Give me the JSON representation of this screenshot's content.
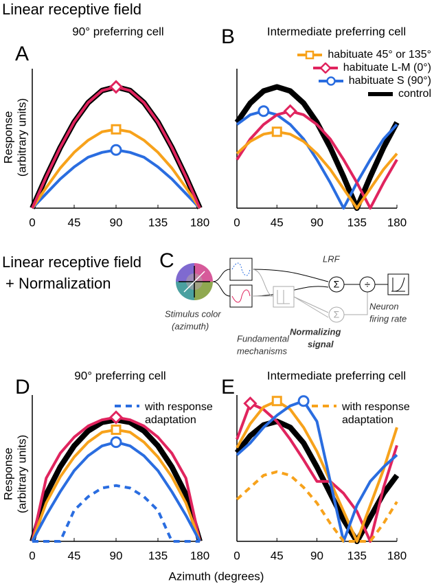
{
  "section_titles": [
    "Linear receptive field",
    "Linear receptive field",
    "+ Normalization"
  ],
  "shared_xlabel": "Azimuth (degrees)",
  "diagram": {
    "panel_label": "C",
    "lrf": "LRF",
    "sum_symbol": "Σ",
    "divide_symbol": "÷",
    "stimulus": [
      "Stimulus color",
      "(azimuth)"
    ],
    "mechanisms": [
      "Fundamental",
      "mechanisms"
    ],
    "normalizing": [
      "Normalizing",
      "signal"
    ],
    "neuron": [
      "Neuron",
      "firing rate"
    ]
  },
  "chart_data": [
    {
      "type": "line",
      "panel_label": "A",
      "title": "90° preferring cell",
      "ylabel": [
        "Response",
        "(arbitrary units)"
      ],
      "x": [
        0,
        15,
        30,
        45,
        60,
        75,
        90,
        105,
        120,
        135,
        150,
        165,
        180
      ],
      "xlim": [
        0,
        180
      ],
      "xticks": [
        0,
        45,
        90,
        135,
        180
      ],
      "ylim": [
        0,
        1.15
      ],
      "series": [
        {
          "color": "#e0245e",
          "marker": "diamond",
          "values": [
            0,
            0.26,
            0.5,
            0.71,
            0.87,
            0.97,
            1,
            0.97,
            0.87,
            0.71,
            0.5,
            0.26,
            0
          ]
        },
        {
          "color": "#f7a21b",
          "marker": "square",
          "values": [
            0,
            0.17,
            0.33,
            0.46,
            0.56,
            0.63,
            0.65,
            0.63,
            0.56,
            0.46,
            0.33,
            0.17,
            0
          ]
        },
        {
          "color": "#2a6de0",
          "marker": "circle",
          "values": [
            0,
            0.12,
            0.24,
            0.34,
            0.42,
            0.46,
            0.48,
            0.46,
            0.42,
            0.34,
            0.24,
            0.12,
            0
          ]
        },
        {
          "color": "#000000",
          "values": [
            0,
            0.26,
            0.5,
            0.71,
            0.87,
            0.97,
            1,
            0.97,
            0.87,
            0.71,
            0.5,
            0.26,
            0
          ]
        }
      ]
    },
    {
      "type": "line",
      "panel_label": "B",
      "title": "Intermediate preferring cell",
      "legend": "upper right",
      "x": [
        0,
        15,
        30,
        45,
        60,
        75,
        90,
        105,
        120,
        135,
        150,
        165,
        180
      ],
      "xlim": [
        0,
        180
      ],
      "xticks": [
        0,
        45,
        90,
        135,
        180
      ],
      "ylim": [
        0,
        1.15
      ],
      "series": [
        {
          "name": "habituate 45° or 135°",
          "color": "#f7a21b",
          "marker": "square",
          "values": [
            0.45,
            0.55,
            0.61,
            0.63,
            0.61,
            0.55,
            0.45,
            0.32,
            0.16,
            0,
            0.16,
            0.32,
            0.45
          ]
        },
        {
          "name": "habituate L-M  (0°)",
          "color": "#e0245e",
          "marker": "diamond",
          "values": [
            0.4,
            0.57,
            0.69,
            0.77,
            0.8,
            0.77,
            0.69,
            0.57,
            0.4,
            0.21,
            0,
            0.21,
            0.4
          ]
        },
        {
          "name": "habituate S  (90°)",
          "color": "#2a6de0",
          "marker": "circle",
          "values": [
            0.69,
            0.77,
            0.8,
            0.77,
            0.69,
            0.57,
            0.4,
            0.21,
            0,
            0.21,
            0.4,
            0.57,
            0.69
          ]
        },
        {
          "name": "control",
          "color": "#000000",
          "values": [
            0.707,
            0.866,
            0.966,
            1,
            0.966,
            0.866,
            0.707,
            0.5,
            0.259,
            0,
            0.259,
            0.5,
            0.707
          ]
        }
      ]
    },
    {
      "type": "line",
      "panel_label": "D",
      "title": "90° preferring cell",
      "ylabel": [
        "Response",
        "(arbitrary units)"
      ],
      "legend": "upper right",
      "x": [
        0,
        15,
        30,
        45,
        60,
        75,
        90,
        105,
        120,
        135,
        150,
        165,
        180
      ],
      "xlim": [
        0,
        180
      ],
      "xticks": [
        0,
        45,
        90,
        135,
        180
      ],
      "ylim": [
        0,
        1.18
      ],
      "series": [
        {
          "name": "with response adaptation",
          "color": "#2a6de0",
          "linestyle": "dashed",
          "values": [
            0,
            0,
            0,
            0.25,
            0.36,
            0.43,
            0.45,
            0.43,
            0.36,
            0.25,
            0,
            0,
            0
          ]
        },
        {
          "color": "#2a6de0",
          "marker": "circle",
          "values": [
            0,
            0.21,
            0.4,
            0.57,
            0.69,
            0.77,
            0.8,
            0.77,
            0.69,
            0.57,
            0.4,
            0.21,
            0
          ]
        },
        {
          "color": "#f7a21b",
          "marker": "square",
          "values": [
            0,
            0.31,
            0.52,
            0.68,
            0.8,
            0.88,
            0.9,
            0.88,
            0.8,
            0.68,
            0.52,
            0.31,
            0
          ]
        },
        {
          "color": "#e0245e",
          "marker": "diamond",
          "values": [
            0,
            0.51,
            0.71,
            0.84,
            0.93,
            0.98,
            1,
            0.98,
            0.93,
            0.84,
            0.71,
            0.51,
            0
          ]
        },
        {
          "color": "#000000",
          "values": [
            0,
            0.38,
            0.6,
            0.77,
            0.89,
            0.96,
            0.98,
            0.96,
            0.89,
            0.77,
            0.6,
            0.38,
            0
          ]
        }
      ]
    },
    {
      "type": "line",
      "panel_label": "E",
      "title": "Intermediate preferring cell",
      "legend": "upper right",
      "x": [
        0,
        15,
        30,
        45,
        60,
        75,
        90,
        105,
        120,
        135,
        150,
        165,
        180
      ],
      "xlim": [
        0,
        180
      ],
      "xticks": [
        0,
        45,
        90,
        135,
        180
      ],
      "ylim": [
        0,
        1.22
      ],
      "series": [
        {
          "name": "with response adaptation",
          "color": "#f7a21b",
          "linestyle": "dashed",
          "values": [
            0.35,
            0.45,
            0.55,
            0.58,
            0.55,
            0.45,
            0.32,
            0.15,
            0,
            0,
            0,
            0.15,
            0.33
          ]
        },
        {
          "color": "#2a6de0",
          "marker": "circle",
          "values": [
            0.72,
            0.82,
            0.95,
            1.05,
            1.13,
            1.17,
            1,
            0.5,
            0,
            0.3,
            0.5,
            0.62,
            0.72
          ]
        },
        {
          "color": "#f7a21b",
          "marker": "square",
          "values": [
            0.78,
            0.98,
            1.12,
            1.17,
            1.1,
            0.95,
            0.75,
            0.5,
            0.25,
            0,
            0.3,
            0.6,
            0.95
          ]
        },
        {
          "color": "#e0245e",
          "marker": "diamond",
          "values": [
            0.85,
            1.15,
            1.1,
            1,
            0.85,
            0.68,
            0.5,
            0.5,
            0.4,
            0.25,
            0,
            0.45,
            0.8
          ]
        },
        {
          "color": "#000000",
          "values": [
            0.74,
            0.88,
            0.97,
            1,
            0.95,
            0.82,
            0.62,
            0.4,
            0.18,
            0,
            0.2,
            0.4,
            0.55
          ]
        }
      ]
    }
  ]
}
